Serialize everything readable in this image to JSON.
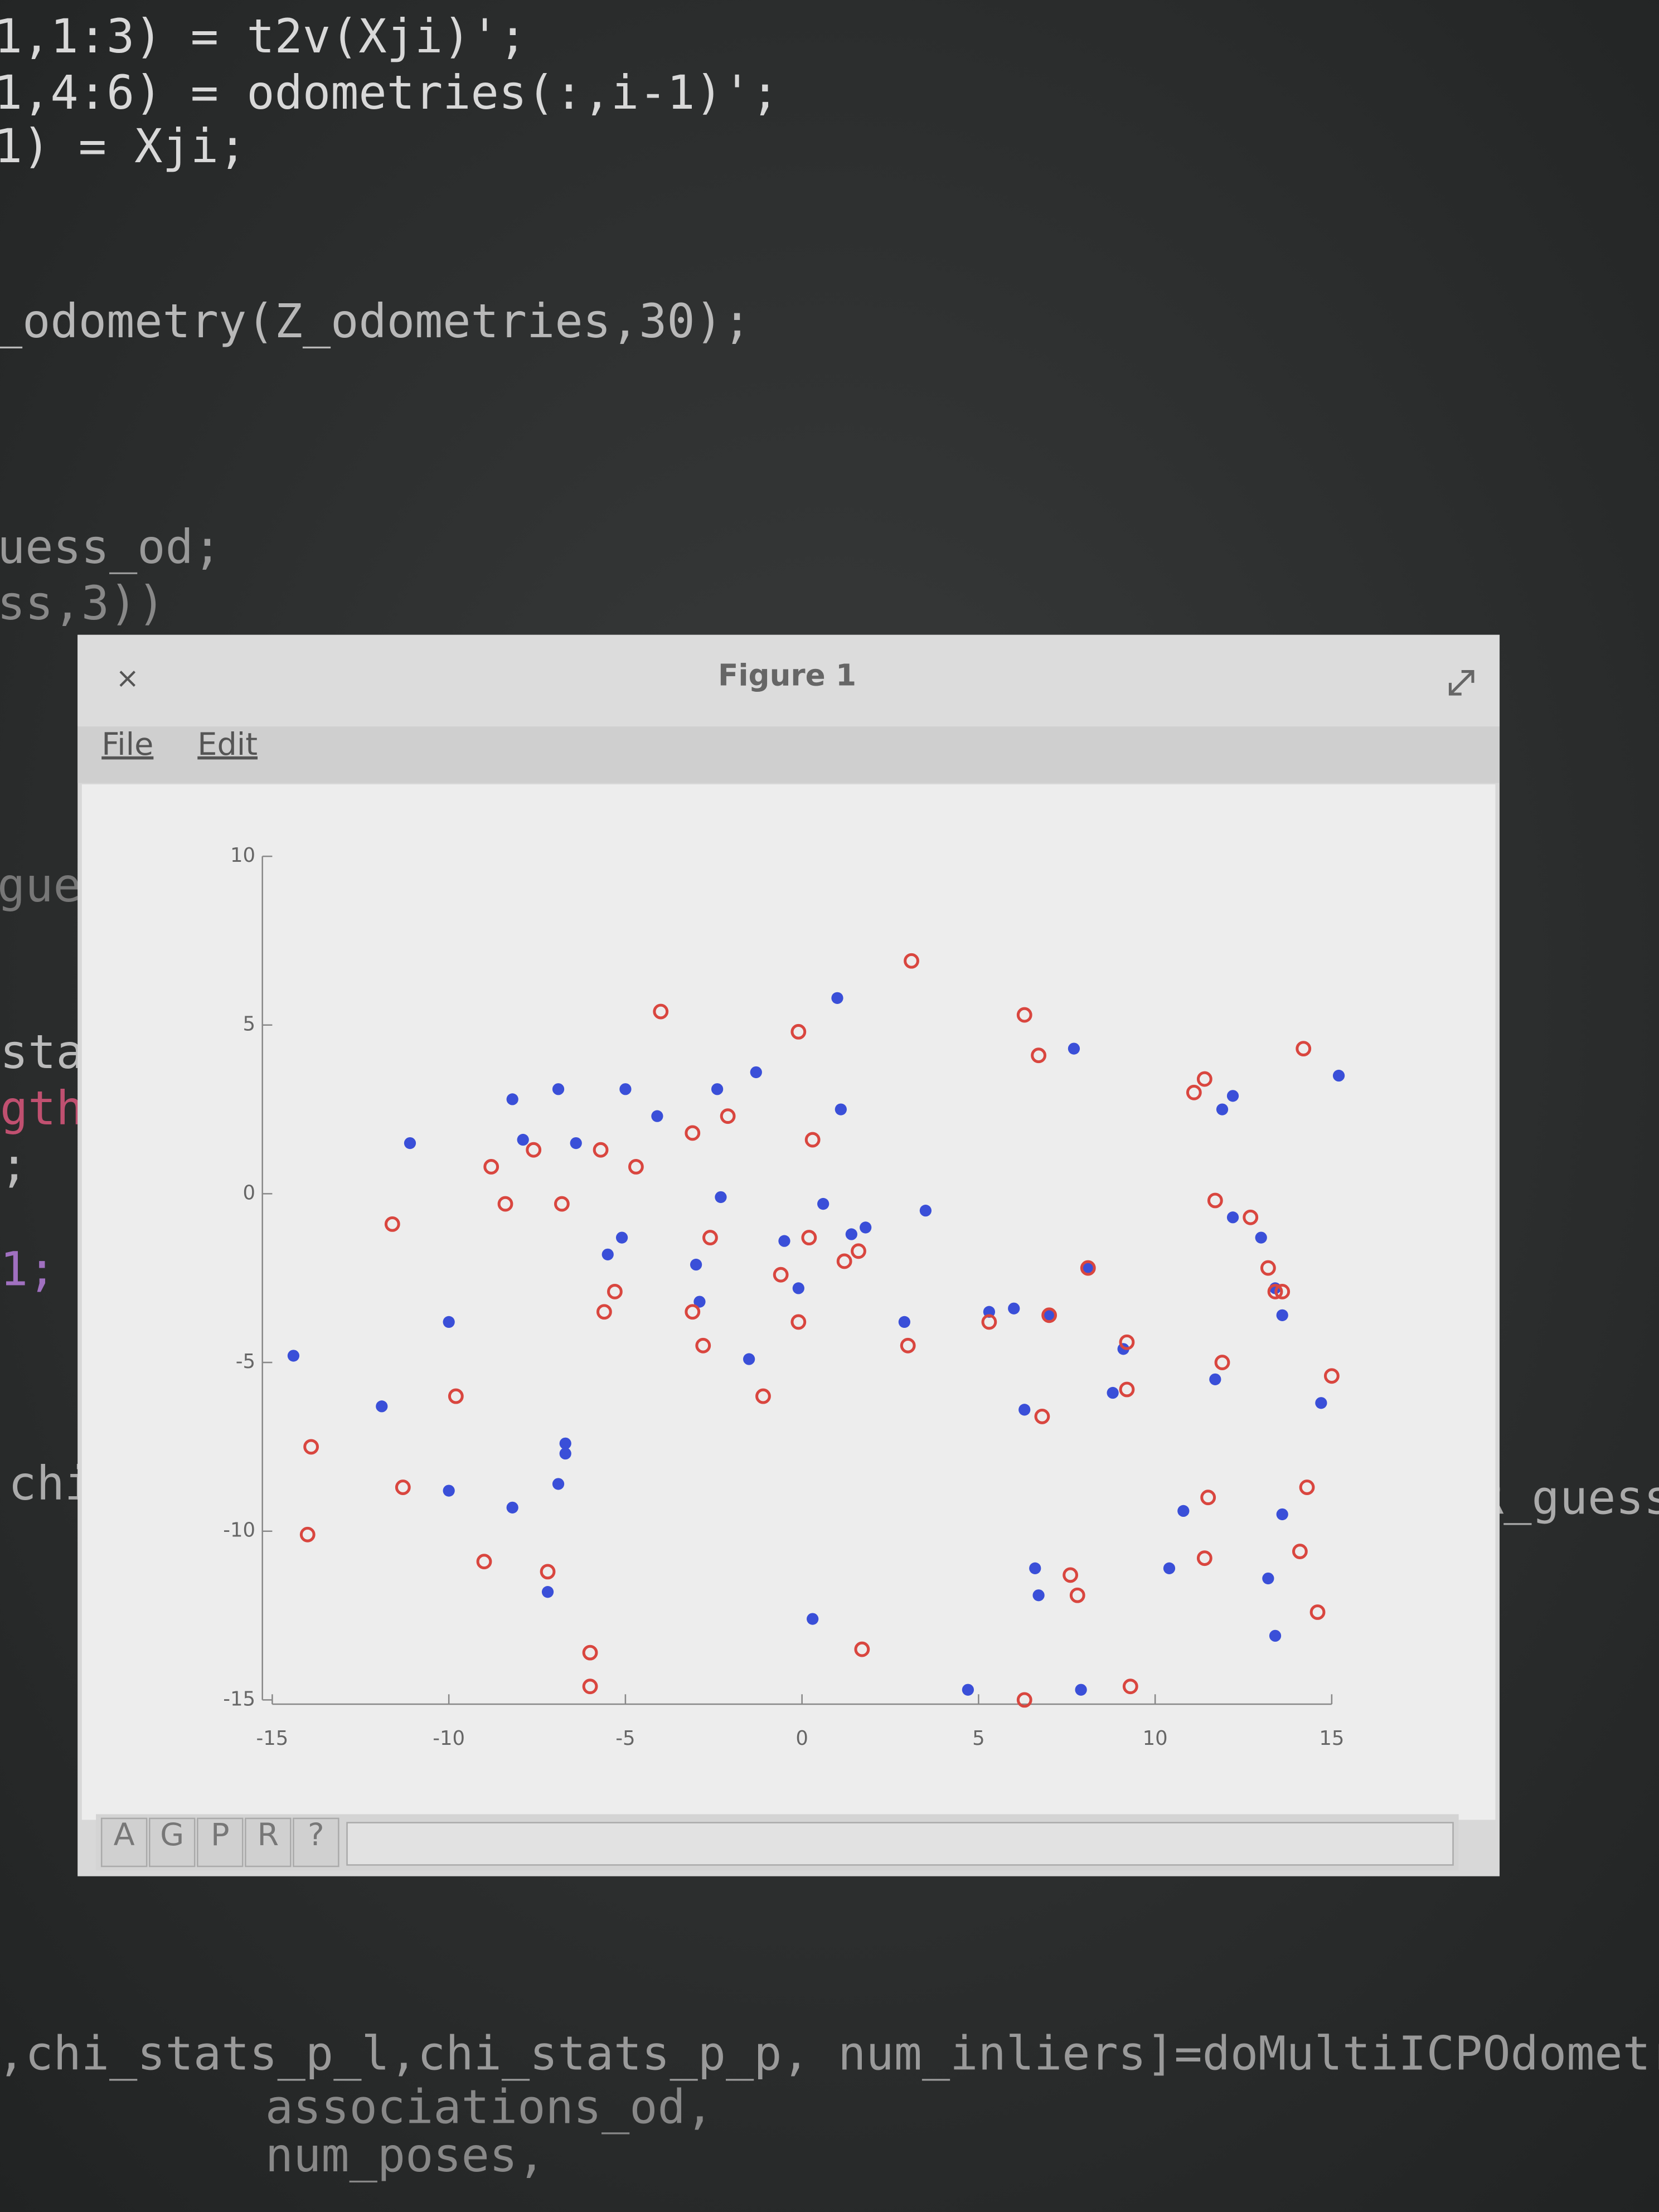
{
  "editor": {
    "lines": [
      "1,1:3) = t2v(Xji)';",
      "1,4:6) = odometries(:,i-1)';",
      "1) = Xji;",
      "_odometry(Z_odometries,30);",
      "uess_od;",
      "ss,3))",
      "gue",
      "sta",
      "gth",
      ";",
      "1;",
      "chi",
      "R_guess",
      ",chi_stats_p_l,chi_stats_p_p, num_inliers]=doMultiICPOdometry(X",
      "associations_od,",
      "num_poses,"
    ]
  },
  "window": {
    "close": "×",
    "title": "Figure 1",
    "menu": [
      "File",
      "Edit"
    ],
    "toolbar": [
      "A",
      "G",
      "P",
      "R",
      "?"
    ]
  },
  "chart_data": {
    "type": "scatter",
    "xlim": [
      -15,
      15
    ],
    "ylim": [
      -15,
      10
    ],
    "xticks": [
      -15,
      -10,
      -5,
      0,
      5,
      10,
      15
    ],
    "yticks": [
      -15,
      -10,
      -5,
      0,
      5,
      10
    ],
    "series": [
      {
        "color": "#3a4fd8",
        "marker": "filled",
        "x": [
          -14.4,
          -11.9,
          -11.1,
          -10.0,
          -10.0,
          -8.2,
          -8.2,
          -7.9,
          -7.2,
          -6.9,
          -6.9,
          -6.7,
          -6.7,
          -6.4,
          -5.5,
          -5.1,
          -5.0,
          -4.1,
          -3.0,
          -2.9,
          -2.4,
          -2.3,
          -1.5,
          -1.3,
          -0.5,
          -0.1,
          0.3,
          0.6,
          1.0,
          1.1,
          1.4,
          1.8,
          2.9,
          3.5,
          4.7,
          5.3,
          6.0,
          6.3,
          6.6,
          6.7,
          7.0,
          7.7,
          7.9,
          8.1,
          8.8,
          9.1,
          10.4,
          10.8,
          11.7,
          11.9,
          12.2,
          12.2,
          13.0,
          13.2,
          13.4,
          13.6,
          13.4,
          13.6,
          14.7,
          15.2
        ],
        "values": [
          -4.8,
          -6.3,
          1.5,
          -3.8,
          -8.8,
          2.8,
          -9.3,
          1.6,
          -11.8,
          3.1,
          -8.6,
          -7.4,
          -7.7,
          1.5,
          -1.8,
          -1.3,
          3.1,
          2.3,
          -2.1,
          -3.2,
          3.1,
          -0.1,
          -4.9,
          3.6,
          -1.4,
          -2.8,
          -12.6,
          -0.3,
          5.8,
          2.5,
          -1.2,
          -1.0,
          -3.8,
          -0.5,
          -14.7,
          -3.5,
          -3.4,
          -6.4,
          -11.1,
          -11.9,
          -3.6,
          4.3,
          -14.7,
          -2.2,
          -5.9,
          -4.6,
          -11.1,
          -9.4,
          -5.5,
          2.5,
          2.9,
          -0.7,
          -1.3,
          -11.4,
          -13.1,
          -9.5,
          -2.8,
          -3.6,
          -6.2,
          3.5
        ]
      },
      {
        "color": "#d9463f",
        "marker": "open",
        "x": [
          -13.9,
          -14.0,
          -11.6,
          -11.3,
          -9.8,
          -9.0,
          -8.8,
          -8.4,
          -7.6,
          -7.2,
          -6.8,
          -6.0,
          -6.0,
          -5.7,
          -5.6,
          -5.3,
          -4.7,
          -4.0,
          -3.1,
          -3.1,
          -2.8,
          -2.6,
          -2.1,
          -1.1,
          -0.6,
          -0.1,
          -0.1,
          0.2,
          0.3,
          1.2,
          1.6,
          1.7,
          3.0,
          3.1,
          5.3,
          6.3,
          6.3,
          6.7,
          6.8,
          7.0,
          7.6,
          7.8,
          8.1,
          9.2,
          9.2,
          9.3,
          11.1,
          11.4,
          11.4,
          11.5,
          11.7,
          11.9,
          12.7,
          13.2,
          13.4,
          13.6,
          14.1,
          14.2,
          14.3,
          14.6,
          15.0
        ],
        "values": [
          -7.5,
          -10.1,
          -0.9,
          -8.7,
          -6.0,
          -10.9,
          0.8,
          -0.3,
          1.3,
          -11.2,
          -0.3,
          -14.6,
          -13.6,
          1.3,
          -3.5,
          -2.9,
          0.8,
          5.4,
          1.8,
          -3.5,
          -4.5,
          -1.3,
          2.3,
          -6.0,
          -2.4,
          -3.8,
          4.8,
          -1.3,
          1.6,
          -2.0,
          -1.7,
          -13.5,
          -4.5,
          6.9,
          -3.8,
          5.3,
          -15.0,
          4.1,
          -6.6,
          -3.6,
          -11.3,
          -11.9,
          -2.2,
          -5.8,
          -4.4,
          -14.6,
          3.0,
          3.4,
          -10.8,
          -9.0,
          -0.2,
          -5.0,
          -0.7,
          -2.2,
          -2.9,
          -2.9,
          -10.6,
          4.3,
          -8.7,
          -12.4,
          -5.4
        ]
      }
    ]
  }
}
